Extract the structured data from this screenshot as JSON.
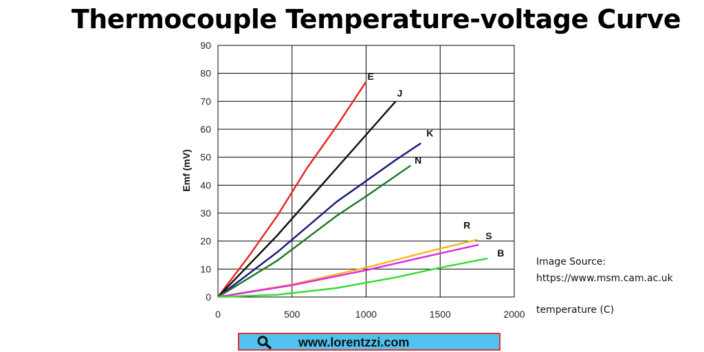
{
  "page": {
    "source_line1": "Image Source:",
    "source_line2": "https://www.msm.cam.ac.uk",
    "watermark_text": "www.lorentzzi.com",
    "watermark_icon": "search-icon"
  },
  "chart_data": {
    "type": "line",
    "title": "Thermocouple Temperature-voltage Curve",
    "xlabel": "temperature (C)",
    "ylabel": "Emf (mV)",
    "xlim": [
      0,
      2000
    ],
    "ylim": [
      0,
      90
    ],
    "xticks": [
      0,
      500,
      1000,
      1500,
      2000
    ],
    "yticks": [
      0,
      10,
      20,
      30,
      40,
      50,
      60,
      70,
      80,
      90
    ],
    "grid": true,
    "series": [
      {
        "name": "E",
        "color": "#ee2222",
        "points": [
          [
            0,
            0
          ],
          [
            200,
            14
          ],
          [
            400,
            29
          ],
          [
            600,
            46
          ],
          [
            800,
            61
          ],
          [
            1000,
            77
          ]
        ]
      },
      {
        "name": "J",
        "color": "#111111",
        "points": [
          [
            0,
            0
          ],
          [
            400,
            22
          ],
          [
            800,
            46
          ],
          [
            1000,
            58
          ],
          [
            1200,
            70
          ]
        ]
      },
      {
        "name": "K",
        "color": "#1a1a7a",
        "points": [
          [
            0,
            0
          ],
          [
            400,
            16
          ],
          [
            800,
            34
          ],
          [
            1200,
            49
          ],
          [
            1370,
            55
          ]
        ]
      },
      {
        "name": "N",
        "color": "#1e7a2a",
        "points": [
          [
            0,
            0
          ],
          [
            400,
            13
          ],
          [
            800,
            29
          ],
          [
            1000,
            36
          ],
          [
            1300,
            47
          ]
        ]
      },
      {
        "name": "R",
        "color": "#f5b81c",
        "points": [
          [
            0,
            0
          ],
          [
            500,
            4.5
          ],
          [
            1000,
            10.5
          ],
          [
            1400,
            16
          ],
          [
            1750,
            20.5
          ]
        ]
      },
      {
        "name": "S",
        "color": "#e02ae0",
        "points": [
          [
            0,
            0
          ],
          [
            500,
            4.2
          ],
          [
            1000,
            9.6
          ],
          [
            1400,
            14.4
          ],
          [
            1760,
            18.7
          ]
        ]
      },
      {
        "name": "B",
        "color": "#33dd33",
        "points": [
          [
            0,
            0
          ],
          [
            400,
            0.8
          ],
          [
            800,
            3.2
          ],
          [
            1200,
            7
          ],
          [
            1500,
            10.5
          ],
          [
            1820,
            13.8
          ]
        ]
      }
    ]
  }
}
